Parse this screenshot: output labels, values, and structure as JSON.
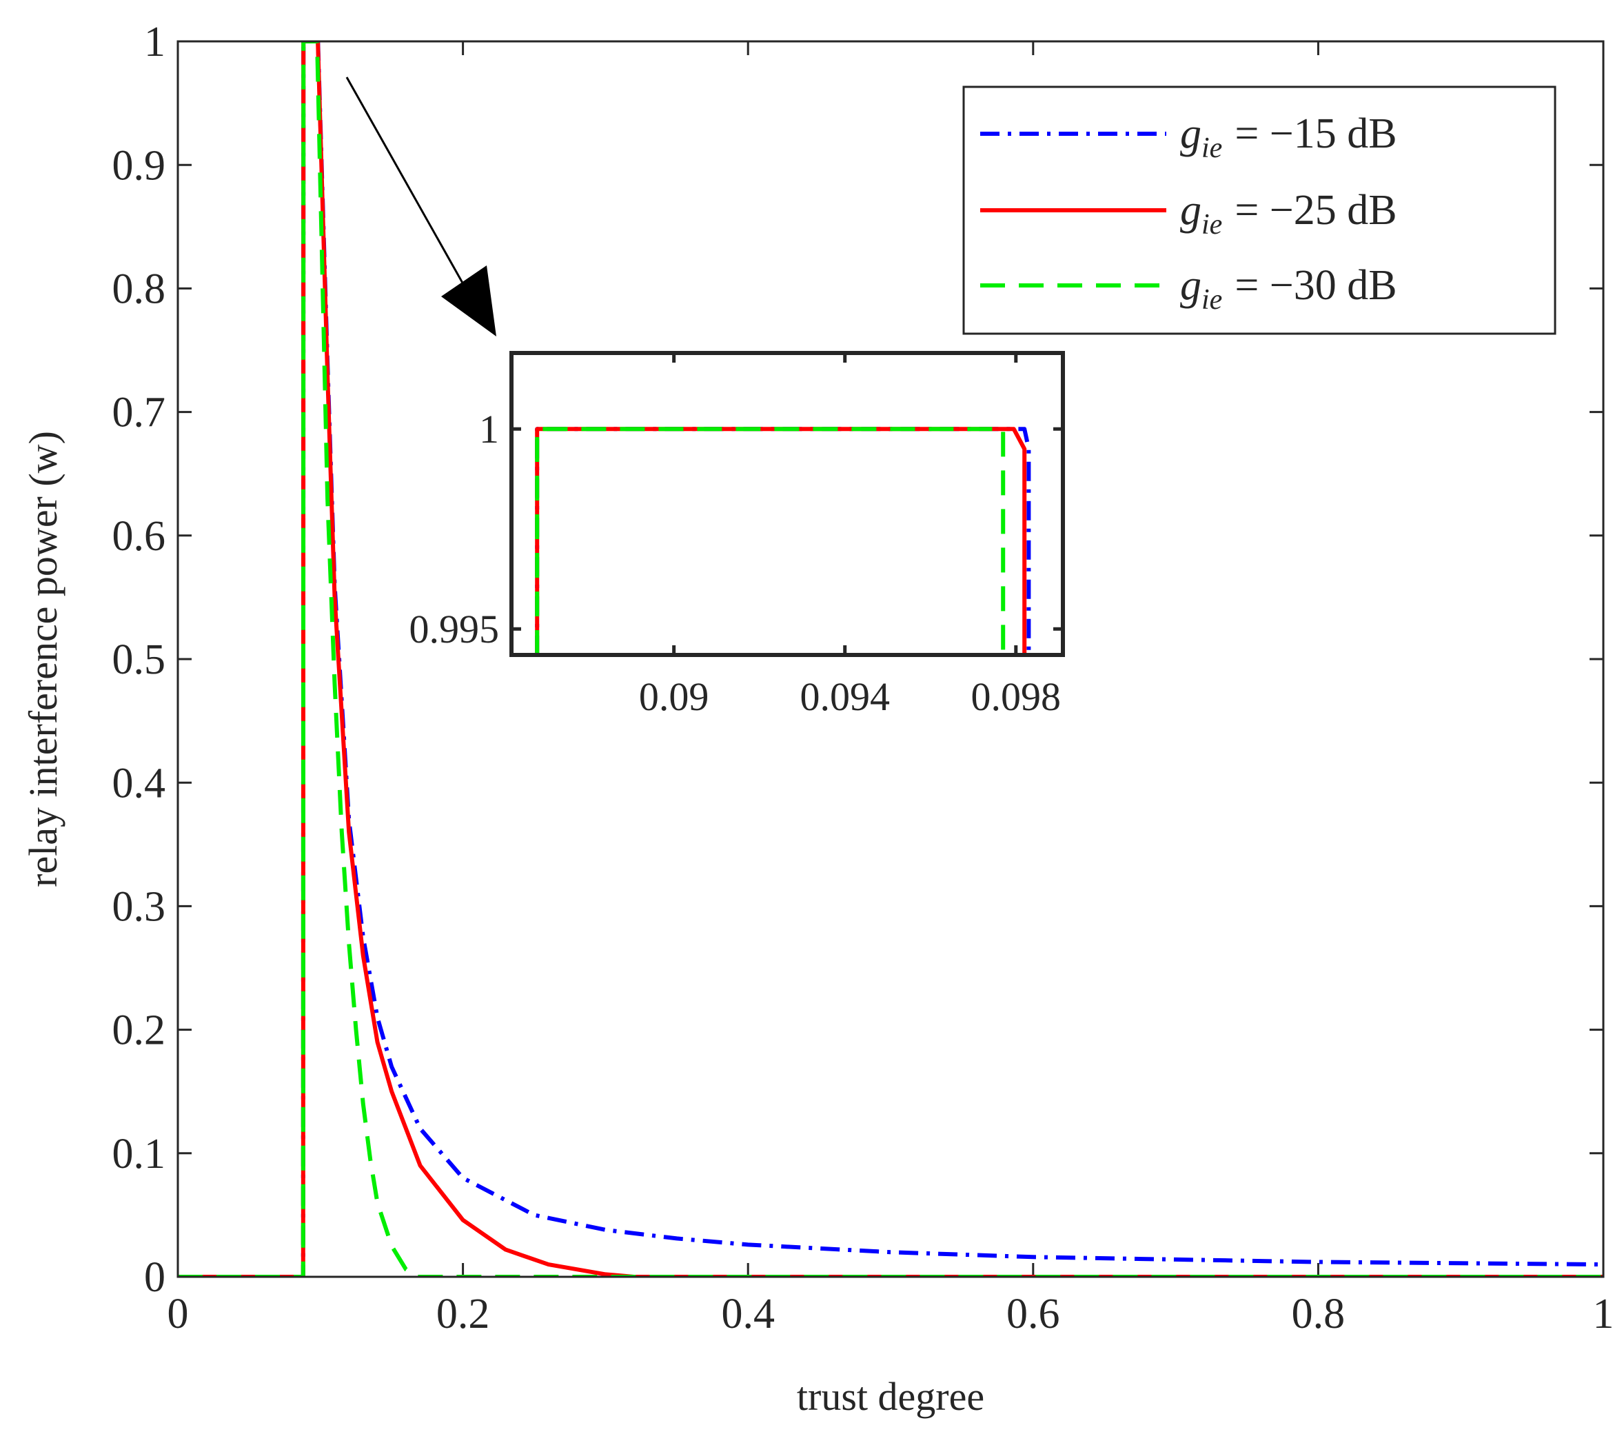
{
  "chart_data": [
    {
      "type": "line",
      "xlabel": "trust degree",
      "ylabel": "relay interference power (w)",
      "xlim": [
        0,
        1
      ],
      "ylim": [
        0,
        1
      ],
      "xticks": [
        0,
        0.2,
        0.4,
        0.6,
        0.8,
        1
      ],
      "xtick_labels": [
        "0",
        "0.2",
        "0.4",
        "0.6",
        "0.8",
        "1"
      ],
      "yticks": [
        0,
        0.1,
        0.2,
        0.3,
        0.4,
        0.5,
        0.6,
        0.7,
        0.8,
        0.9,
        1
      ],
      "ytick_labels": [
        "0",
        "0.1",
        "0.2",
        "0.3",
        "0.4",
        "0.5",
        "0.6",
        "0.7",
        "0.8",
        "0.9",
        "1"
      ],
      "legend_position": "top-right",
      "series": [
        {
          "name": "g_ie = −15 dB",
          "legend_var": "g",
          "legend_sub": "ie",
          "legend_rest": "= −15 dB",
          "color": "#0000ff",
          "style": "dash-dot",
          "x": [
            0,
            0.0879,
            0.0881,
            0.0983,
            0.105,
            0.11,
            0.12,
            0.13,
            0.14,
            0.15,
            0.17,
            0.2,
            0.25,
            0.3,
            0.35,
            0.4,
            0.5,
            0.6,
            0.7,
            0.8,
            0.9,
            1.0
          ],
          "y": [
            0,
            0,
            1,
            1,
            0.74,
            0.56,
            0.37,
            0.275,
            0.21,
            0.17,
            0.12,
            0.08,
            0.05,
            0.038,
            0.031,
            0.026,
            0.02,
            0.016,
            0.014,
            0.012,
            0.011,
            0.01
          ]
        },
        {
          "name": "g_ie = −25 dB",
          "legend_var": "g",
          "legend_sub": "ie",
          "legend_rest": "= −25 dB",
          "color": "#ff0000",
          "style": "solid",
          "x": [
            0,
            0.0879,
            0.0881,
            0.0982,
            0.105,
            0.11,
            0.12,
            0.13,
            0.14,
            0.15,
            0.17,
            0.2,
            0.23,
            0.26,
            0.3,
            0.32,
            1.0
          ],
          "y": [
            0,
            0,
            1,
            1,
            0.73,
            0.55,
            0.36,
            0.26,
            0.19,
            0.15,
            0.09,
            0.046,
            0.022,
            0.01,
            0.002,
            0,
            0
          ]
        },
        {
          "name": "g_ie = −30 dB",
          "legend_var": "g",
          "legend_sub": "ie",
          "legend_rest": "= −30 dB",
          "color": "#00ee00",
          "style": "dashed",
          "x": [
            0,
            0.0879,
            0.0881,
            0.0977,
            0.105,
            0.11,
            0.115,
            0.12,
            0.125,
            0.13,
            0.135,
            0.14,
            0.15,
            0.16,
            0.168,
            1.0
          ],
          "y": [
            0,
            0,
            1,
            1,
            0.63,
            0.48,
            0.36,
            0.27,
            0.2,
            0.14,
            0.095,
            0.06,
            0.025,
            0.006,
            0,
            0
          ]
        }
      ]
    },
    {
      "type": "line",
      "role": "zoomed inset",
      "xlim": [
        0.0862,
        0.0991
      ],
      "ylim": [
        0.99435,
        1.0019
      ],
      "xticks": [
        0.09,
        0.094,
        0.098
      ],
      "xtick_labels": [
        "0.09",
        "0.094",
        "0.098"
      ],
      "yticks": [
        0.995,
        1
      ],
      "ytick_labels": [
        "0.995",
        "1"
      ],
      "series": [
        {
          "name": "g_ie = −15 dB",
          "color": "#0000ff",
          "style": "dash-dot",
          "x": [
            0.0868,
            0.0868,
            0.0982,
            0.0983,
            0.0983
          ],
          "y": [
            0.99435,
            1,
            1,
            0.9995,
            0.99435
          ]
        },
        {
          "name": "g_ie = −25 dB",
          "color": "#ff0000",
          "style": "solid",
          "x": [
            0.0868,
            0.0868,
            0.09795,
            0.0982,
            0.0982
          ],
          "y": [
            0.99435,
            1,
            1,
            0.9995,
            0.99435
          ]
        },
        {
          "name": "g_ie = −30 dB",
          "color": "#00ee00",
          "style": "dashed",
          "x": [
            0.0868,
            0.0868,
            0.0977,
            0.0977
          ],
          "y": [
            0.99435,
            1,
            1,
            0.99435
          ]
        }
      ]
    }
  ]
}
